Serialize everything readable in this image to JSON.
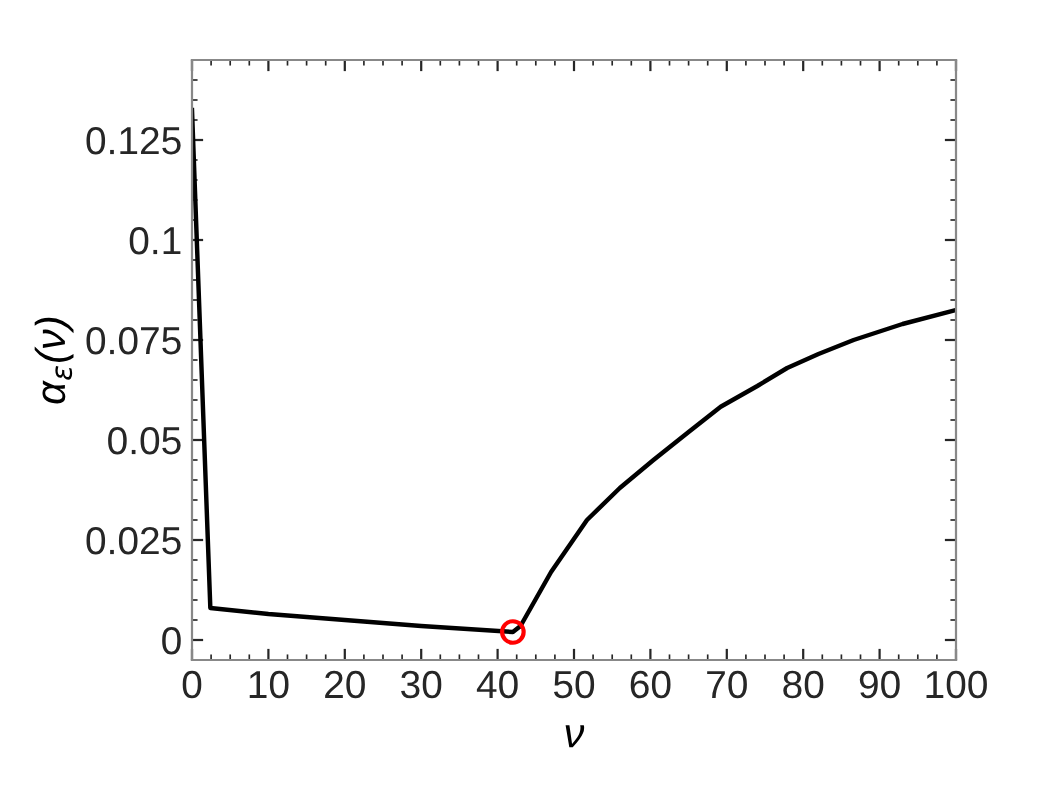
{
  "chart_data": {
    "type": "line",
    "xlabel": "ν",
    "ylabel": "α$_{ε}$(ν)",
    "xlim": [
      0,
      100
    ],
    "ylim": [
      -0.005,
      0.145
    ],
    "xticks": [
      0,
      10,
      20,
      30,
      40,
      50,
      60,
      70,
      80,
      90,
      100
    ],
    "yticks": [
      0,
      0.025,
      0.05,
      0.075,
      0.1,
      0.125
    ],
    "grid": false,
    "legend": false,
    "series": [
      {
        "color": "#000000",
        "marker": "none",
        "x": [
          0,
          2.4,
          10,
          20,
          30,
          42,
          43,
          47,
          51.7,
          56,
          60.4,
          65,
          69.2,
          74,
          77.9,
          82,
          86.6,
          93,
          100
        ],
        "values": [
          0.1325,
          0.008,
          0.0065,
          0.005,
          0.0035,
          0.002,
          0.0035,
          0.017,
          0.03,
          0.038,
          0.045,
          0.052,
          0.0583,
          0.0635,
          0.068,
          0.0715,
          0.075,
          0.079,
          0.0825
        ]
      },
      {
        "type": "scatter",
        "color": "#ff0000",
        "marker": "circle",
        "x": [
          42
        ],
        "values": [
          0.002
        ]
      }
    ]
  }
}
